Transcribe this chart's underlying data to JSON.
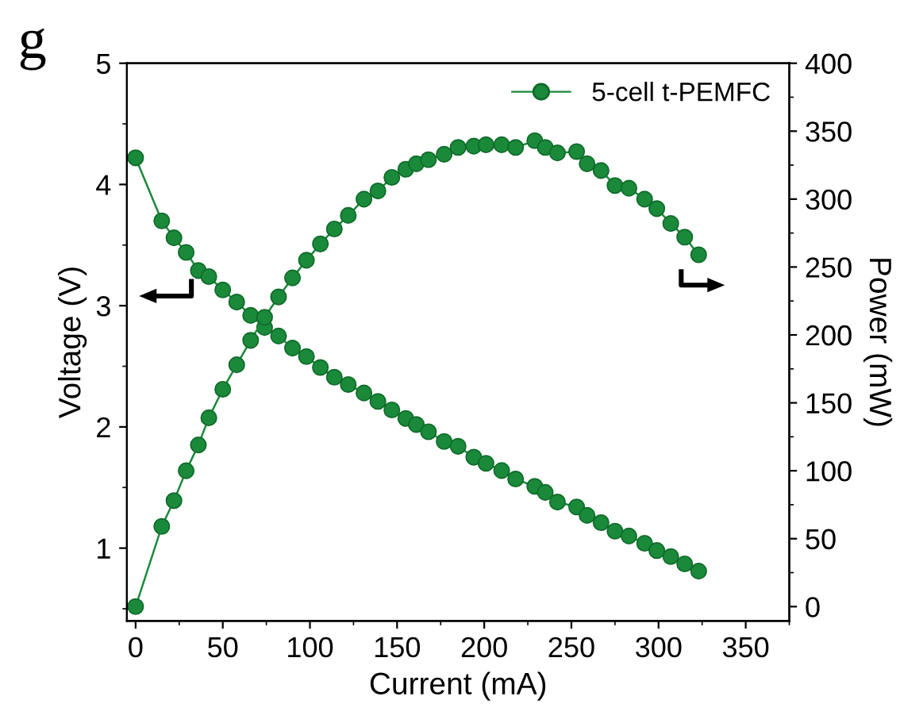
{
  "chart_data": {
    "type": "line",
    "xlabel": "Current (mA)",
    "ylabel": "Voltage (V)",
    "y2label": "Power (mW)",
    "annotations": [
      "g"
    ],
    "x": [
      0,
      15,
      22,
      29,
      36,
      42,
      50,
      58,
      66,
      74,
      82,
      90,
      98,
      106,
      114,
      122,
      131,
      139,
      147,
      155,
      161,
      168,
      177,
      185,
      194,
      201,
      210,
      218,
      229,
      235,
      242,
      253,
      259,
      267,
      275,
      283,
      292,
      299,
      307,
      315,
      323
    ],
    "series": [
      {
        "name": "5-cell t-PEMFC",
        "color": "#1a8a3a",
        "axis": "y",
        "values": [
          4.22,
          3.7,
          3.56,
          3.44,
          3.29,
          3.24,
          3.13,
          3.03,
          2.92,
          2.82,
          2.75,
          2.65,
          2.58,
          2.49,
          2.41,
          2.35,
          2.28,
          2.21,
          2.14,
          2.07,
          2.02,
          1.96,
          1.88,
          1.84,
          1.75,
          1.7,
          1.64,
          1.57,
          1.51,
          1.46,
          1.38,
          1.34,
          1.27,
          1.21,
          1.14,
          1.1,
          1.04,
          0.98,
          0.93,
          0.87,
          0.81
        ]
      },
      {
        "color": "#1a8a3a",
        "axis": "y2",
        "values": [
          0,
          59,
          78,
          100,
          119,
          139,
          160,
          178,
          196,
          213,
          228,
          242,
          255,
          267,
          278,
          288,
          300,
          306,
          316,
          322,
          326,
          329,
          333,
          338,
          339,
          340,
          340,
          338,
          343,
          338,
          334,
          335,
          326,
          321,
          310,
          308,
          300,
          293,
          282,
          272,
          259
        ]
      }
    ],
    "xlim": [
      -5,
      375
    ],
    "xticks": [
      0,
      50,
      100,
      150,
      200,
      250,
      300,
      350
    ],
    "ylim": [
      0.4,
      5
    ],
    "yticks": [
      1,
      2,
      3,
      4,
      5
    ],
    "y2lim": [
      -10.5,
      400
    ],
    "y2ticks": [
      0,
      50,
      100,
      150,
      200,
      250,
      300,
      350,
      400
    ],
    "marker": "circle",
    "line_style": "solid",
    "legend": "top right",
    "grid": false
  }
}
